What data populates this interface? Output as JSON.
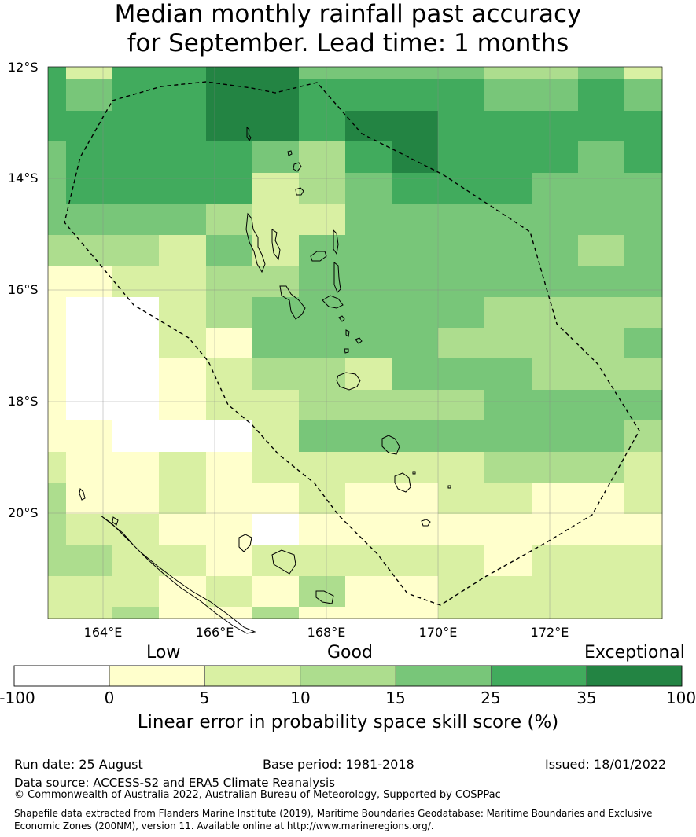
{
  "title": {
    "line1": "Median monthly rainfall past accuracy",
    "line2": "for September. Lead time: 1 months"
  },
  "map": {
    "lat_ticks": [
      "12°S",
      "14°S",
      "16°S",
      "18°S",
      "20°S"
    ],
    "lon_ticks": [
      "164°E",
      "166°E",
      "168°E",
      "170°E",
      "172°E"
    ],
    "lon_range": [
      163,
      174
    ],
    "lat_range": [
      -12,
      -21.9
    ],
    "grid": true,
    "eez_boundary": "dashed",
    "skill_grid_colors": [
      "#ffffff",
      "#ffffcc",
      "#d9f0a3",
      "#addd8e",
      "#78c679",
      "#41ab5d",
      "#238443"
    ]
  },
  "legend": {
    "categories": [
      "Low",
      "Good",
      "Exceptional"
    ],
    "boundaries": [
      "-100",
      "0",
      "5",
      "10",
      "15",
      "25",
      "35",
      "100"
    ],
    "colors": [
      "#ffffff",
      "#ffffcc",
      "#d9f0a3",
      "#addd8e",
      "#78c679",
      "#41ab5d",
      "#238443"
    ],
    "title": "Linear error in probability space skill score (%)"
  },
  "footer": {
    "run_date": "Run date: 25 August",
    "base_period": "Base period: 1981-2018",
    "issued": "Issued: 18/01/2022",
    "data_source": "Data source: ACCESS-S2 and ERA5 Climate Reanalysis",
    "copyright": "© Commonwealth of Australia 2022, Australian Bureau of Meteorology, Supported by COSPPac",
    "shapefile": "Shapefile data extracted from Flanders Marine Institute (2019), Maritime Boundaries Geodatabase: Maritime Boundaries and Exclusive Economic Zones (200NM), version 11. Available online at http://www.marineregions.org/."
  }
}
